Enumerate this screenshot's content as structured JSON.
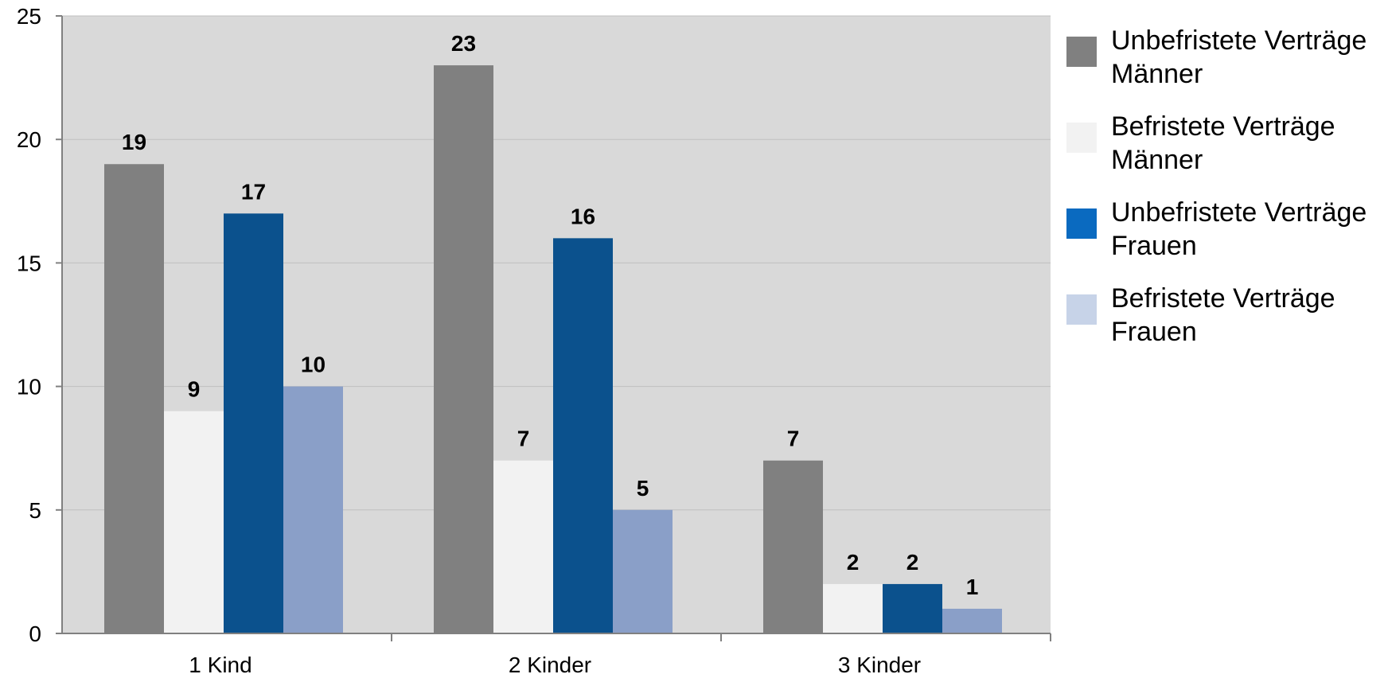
{
  "chart_data": {
    "type": "bar",
    "categories": [
      "1 Kind",
      "2 Kinder",
      "3 Kinder"
    ],
    "series": [
      {
        "name": "Unbefristete Verträge Männer",
        "legend_lines": [
          "Unbefristete Verträge",
          "Männer"
        ],
        "color": "#808080",
        "values": [
          19,
          23,
          7
        ]
      },
      {
        "name": "Befristete Verträge Männer",
        "legend_lines": [
          "Befristete Verträge",
          "Männer"
        ],
        "color": "#f2f2f2",
        "values": [
          9,
          7,
          2
        ]
      },
      {
        "name": "Unbefristete Verträge Frauen",
        "legend_lines": [
          "Unbefristete Verträge",
          "Frauen"
        ],
        "color": "#0b518d",
        "legend_color": "#0a6ac0",
        "values": [
          17,
          16,
          2
        ]
      },
      {
        "name": "Befristete Verträge Frauen",
        "legend_lines": [
          "Befristete Verträge",
          "Frauen"
        ],
        "color": "#8a9fc8",
        "legend_color": "#c7d3e8",
        "values": [
          10,
          5,
          1
        ]
      }
    ],
    "yticks": [
      "0",
      "5",
      "10",
      "15",
      "20",
      "25"
    ],
    "ylim": [
      0,
      25
    ],
    "title": "",
    "xlabel": "",
    "ylabel": "",
    "grid": true,
    "legend_position": "right",
    "plot_background": "#d9d9d9"
  }
}
